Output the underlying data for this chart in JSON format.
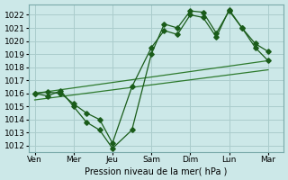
{
  "x_labels": [
    "Ven",
    "Mer",
    "Jeu",
    "Sam",
    "Dim",
    "Lun",
    "Mar"
  ],
  "x_tick_positions": [
    0,
    1,
    2,
    3,
    4,
    5,
    6
  ],
  "series1": {
    "x": [
      0,
      0.33,
      0.67,
      1,
      1.33,
      1.67,
      2,
      2.5,
      3,
      3.33,
      3.67,
      4,
      4.33,
      4.67,
      5,
      5.33,
      5.67,
      6
    ],
    "y": [
      1016,
      1015.8,
      1016.2,
      1015,
      1013.8,
      1013.2,
      1011.8,
      1013.2,
      1019.0,
      1021.3,
      1021.0,
      1022.3,
      1022.2,
      1020.6,
      1022.3,
      1021.0,
      1019.5,
      1018.5
    ]
  },
  "series2": {
    "x": [
      0,
      0.33,
      0.67,
      1,
      1.33,
      1.67,
      2,
      2.5,
      3,
      3.33,
      3.67,
      4,
      4.33,
      4.67,
      5,
      5.33,
      5.67,
      6
    ],
    "y": [
      1016,
      1016.1,
      1016.0,
      1015.2,
      1014.5,
      1014.0,
      1012.2,
      1016.5,
      1019.5,
      1020.8,
      1020.5,
      1022.0,
      1021.8,
      1020.3,
      1022.4,
      1021.0,
      1019.8,
      1019.2
    ]
  },
  "series3": {
    "x": [
      0,
      6
    ],
    "y": [
      1016.0,
      1018.5
    ]
  },
  "series4": {
    "x": [
      0,
      6
    ],
    "y": [
      1015.5,
      1017.8
    ]
  },
  "bg_color": "#cce8e8",
  "grid_color": "#aacccc",
  "line_color_dark": "#1a5c1a",
  "line_color_med": "#2d7a2d",
  "xlabel": "Pression niveau de la mer( hPa )",
  "ylim": [
    1011.5,
    1022.8
  ],
  "yticks": [
    1012,
    1013,
    1014,
    1015,
    1016,
    1017,
    1018,
    1019,
    1020,
    1021,
    1022
  ],
  "marker": "D",
  "markersize": 2.8,
  "linewidth": 0.9
}
